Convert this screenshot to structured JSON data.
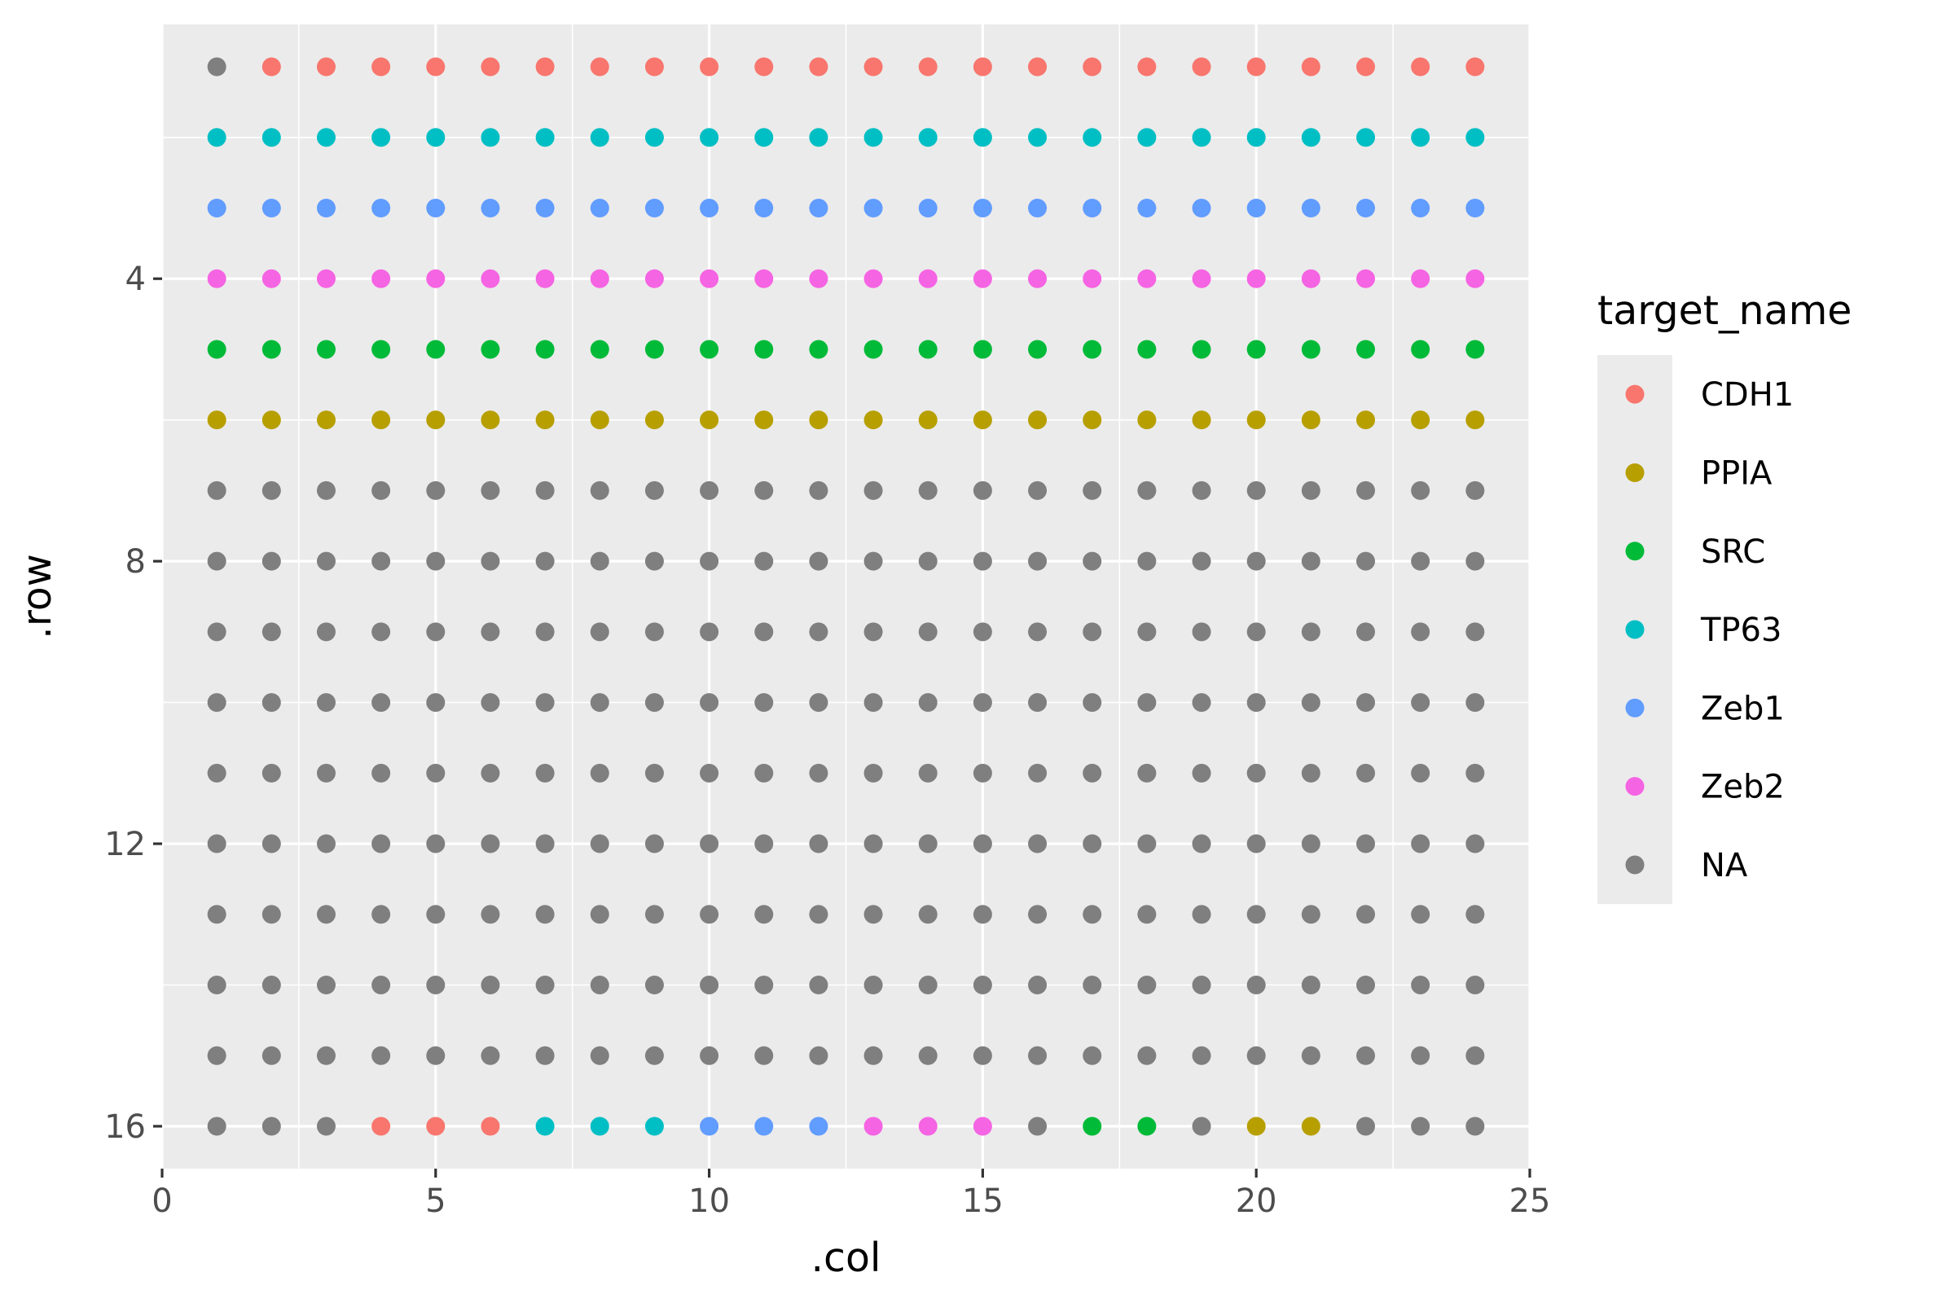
{
  "chart_data": {
    "type": "scatter",
    "xlabel": ".col",
    "ylabel": ".row",
    "xlim": [
      0,
      25
    ],
    "ylim": [
      16.6,
      0.4
    ],
    "y_reversed": true,
    "x_ticks": [
      0,
      5,
      10,
      15,
      20,
      25
    ],
    "y_ticks": [
      4,
      8,
      12,
      16
    ],
    "grid": true,
    "legend_position": "right",
    "legend": {
      "title": "target_name",
      "entries": [
        {
          "label": "CDH1",
          "color": "#F8766D"
        },
        {
          "label": "PPIA",
          "color": "#B79F00"
        },
        {
          "label": "SRC",
          "color": "#00BA38"
        },
        {
          "label": "TP63",
          "color": "#00BFC4"
        },
        {
          "label": "Zeb1",
          "color": "#619CFF"
        },
        {
          "label": "Zeb2",
          "color": "#F564E3"
        },
        {
          "label": "NA",
          "color": "#7F7F7F"
        }
      ]
    },
    "cols": [
      1,
      24
    ],
    "rows": [
      1,
      16
    ],
    "row_targets": {
      "1": [
        "NA",
        "CDH1",
        "CDH1",
        "CDH1",
        "CDH1",
        "CDH1",
        "CDH1",
        "CDH1",
        "CDH1",
        "CDH1",
        "CDH1",
        "CDH1",
        "CDH1",
        "CDH1",
        "CDH1",
        "CDH1",
        "CDH1",
        "CDH1",
        "CDH1",
        "CDH1",
        "CDH1",
        "CDH1",
        "CDH1",
        "CDH1"
      ],
      "2": [
        "TP63",
        "TP63",
        "TP63",
        "TP63",
        "TP63",
        "TP63",
        "TP63",
        "TP63",
        "TP63",
        "TP63",
        "TP63",
        "TP63",
        "TP63",
        "TP63",
        "TP63",
        "TP63",
        "TP63",
        "TP63",
        "TP63",
        "TP63",
        "TP63",
        "TP63",
        "TP63",
        "TP63"
      ],
      "3": [
        "Zeb1",
        "Zeb1",
        "Zeb1",
        "Zeb1",
        "Zeb1",
        "Zeb1",
        "Zeb1",
        "Zeb1",
        "Zeb1",
        "Zeb1",
        "Zeb1",
        "Zeb1",
        "Zeb1",
        "Zeb1",
        "Zeb1",
        "Zeb1",
        "Zeb1",
        "Zeb1",
        "Zeb1",
        "Zeb1",
        "Zeb1",
        "Zeb1",
        "Zeb1",
        "Zeb1"
      ],
      "4": [
        "Zeb2",
        "Zeb2",
        "Zeb2",
        "Zeb2",
        "Zeb2",
        "Zeb2",
        "Zeb2",
        "Zeb2",
        "Zeb2",
        "Zeb2",
        "Zeb2",
        "Zeb2",
        "Zeb2",
        "Zeb2",
        "Zeb2",
        "Zeb2",
        "Zeb2",
        "Zeb2",
        "Zeb2",
        "Zeb2",
        "Zeb2",
        "Zeb2",
        "Zeb2",
        "Zeb2"
      ],
      "5": [
        "SRC",
        "SRC",
        "SRC",
        "SRC",
        "SRC",
        "SRC",
        "SRC",
        "SRC",
        "SRC",
        "SRC",
        "SRC",
        "SRC",
        "SRC",
        "SRC",
        "SRC",
        "SRC",
        "SRC",
        "SRC",
        "SRC",
        "SRC",
        "SRC",
        "SRC",
        "SRC",
        "SRC"
      ],
      "6": [
        "PPIA",
        "PPIA",
        "PPIA",
        "PPIA",
        "PPIA",
        "PPIA",
        "PPIA",
        "PPIA",
        "PPIA",
        "PPIA",
        "PPIA",
        "PPIA",
        "PPIA",
        "PPIA",
        "PPIA",
        "PPIA",
        "PPIA",
        "PPIA",
        "PPIA",
        "PPIA",
        "PPIA",
        "PPIA",
        "PPIA",
        "PPIA"
      ],
      "16": [
        "NA",
        "NA",
        "NA",
        "CDH1",
        "CDH1",
        "CDH1",
        "TP63",
        "TP63",
        "TP63",
        "Zeb1",
        "Zeb1",
        "Zeb1",
        "Zeb2",
        "Zeb2",
        "Zeb2",
        "NA",
        "SRC",
        "SRC",
        "NA",
        "PPIA",
        "PPIA",
        "NA",
        "NA",
        "NA"
      ]
    },
    "default_target": "NA"
  }
}
